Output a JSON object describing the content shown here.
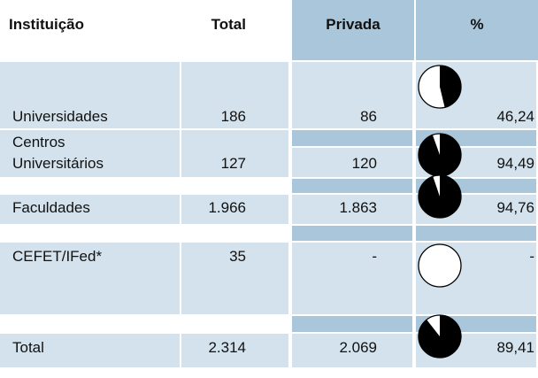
{
  "table": {
    "header": [
      "Instituição",
      "Total",
      "Privada",
      "%"
    ],
    "rows": [
      [
        "Universidades",
        "186",
        "86",
        "46,24"
      ],
      [
        "Centros\nUniversitários",
        "127",
        "120",
        "94,49"
      ],
      [
        "Faculdades",
        "1.966",
        "1.863",
        "94,76"
      ],
      [
        "CEFET/IFed*",
        "35",
        "-",
        "-"
      ],
      [
        "Total",
        "2.314",
        "2.069",
        "89,41"
      ]
    ],
    "pie_percent": [
      46.24,
      94.49,
      94.76,
      0,
      89.41
    ]
  }
}
